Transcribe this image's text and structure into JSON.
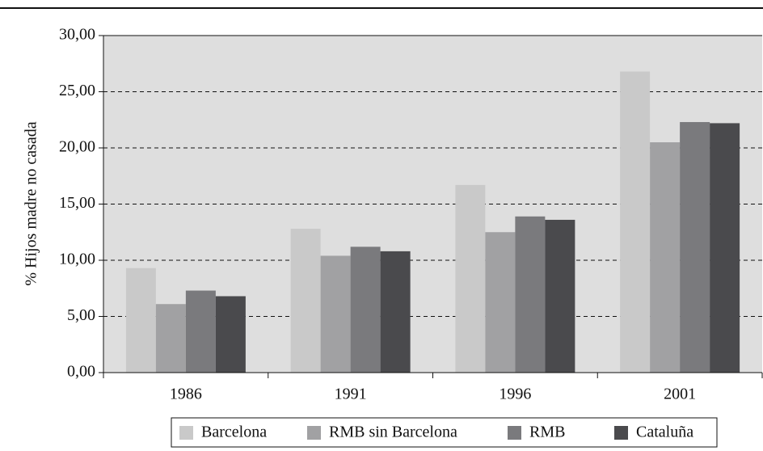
{
  "chart_data": {
    "type": "bar",
    "ylabel": "% Hijos madre no casada",
    "categories": [
      "1986",
      "1991",
      "1996",
      "2001"
    ],
    "series": [
      {
        "name": "Barcelona",
        "color": "#c9c9c9",
        "values": [
          9.3,
          12.8,
          16.7,
          26.8
        ]
      },
      {
        "name": "RMB sin Barcelona",
        "color": "#a1a1a3",
        "values": [
          6.1,
          10.4,
          12.5,
          20.5
        ]
      },
      {
        "name": "RMB",
        "color": "#7a7a7d",
        "values": [
          7.3,
          11.2,
          13.9,
          22.3
        ]
      },
      {
        "name": "Cataluña",
        "color": "#4a4a4d",
        "values": [
          6.8,
          10.8,
          13.6,
          22.2
        ]
      }
    ],
    "ylim": [
      0,
      30
    ],
    "yticks": [
      {
        "value": 0,
        "label": "0,00"
      },
      {
        "value": 5,
        "label": "5,00"
      },
      {
        "value": 10,
        "label": "10,00"
      },
      {
        "value": 15,
        "label": "15,00"
      },
      {
        "value": 20,
        "label": "20,00"
      },
      {
        "value": 25,
        "label": "25,00"
      },
      {
        "value": 30,
        "label": "30,00"
      }
    ],
    "grid": true
  }
}
